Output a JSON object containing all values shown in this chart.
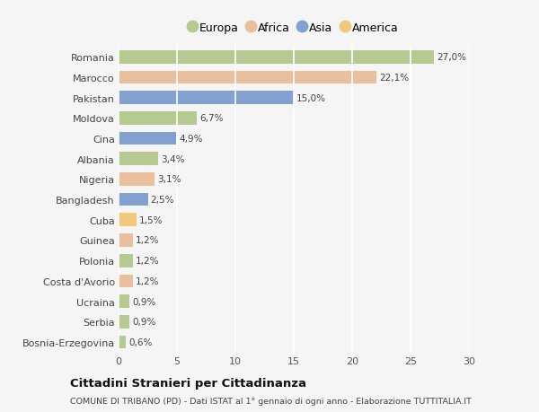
{
  "countries": [
    "Romania",
    "Marocco",
    "Pakistan",
    "Moldova",
    "Cina",
    "Albania",
    "Nigeria",
    "Bangladesh",
    "Cuba",
    "Guinea",
    "Polonia",
    "Costa d'Avorio",
    "Ucraina",
    "Serbia",
    "Bosnia-Erzegovina"
  ],
  "values": [
    27.0,
    22.1,
    15.0,
    6.7,
    4.9,
    3.4,
    3.1,
    2.5,
    1.5,
    1.2,
    1.2,
    1.2,
    0.9,
    0.9,
    0.6
  ],
  "labels": [
    "27,0%",
    "22,1%",
    "15,0%",
    "6,7%",
    "4,9%",
    "3,4%",
    "3,1%",
    "2,5%",
    "1,5%",
    "1,2%",
    "1,2%",
    "1,2%",
    "0,9%",
    "0,9%",
    "0,6%"
  ],
  "colors": [
    "#a8c07a",
    "#e8b48a",
    "#6a8fc8",
    "#a8c07a",
    "#6a8fc8",
    "#a8c07a",
    "#e8b48a",
    "#6a8fc8",
    "#f0c060",
    "#e8b48a",
    "#a8c07a",
    "#e8b48a",
    "#a8c07a",
    "#a8c07a",
    "#a8c07a"
  ],
  "continent_labels": [
    "Europa",
    "Africa",
    "Asia",
    "America"
  ],
  "continent_colors": [
    "#a8c07a",
    "#e8b48a",
    "#6a8fc8",
    "#f0c060"
  ],
  "title": "Cittadini Stranieri per Cittadinanza",
  "subtitle": "COMUNE DI TRIBANO (PD) - Dati ISTAT al 1° gennaio di ogni anno - Elaborazione TUTTITALIA.IT",
  "xlim": [
    0,
    30
  ],
  "xticks": [
    0,
    5,
    10,
    15,
    20,
    25,
    30
  ],
  "background_color": "#f5f5f5",
  "grid_color": "#ffffff",
  "bar_alpha": 0.82,
  "bar_height": 0.65
}
